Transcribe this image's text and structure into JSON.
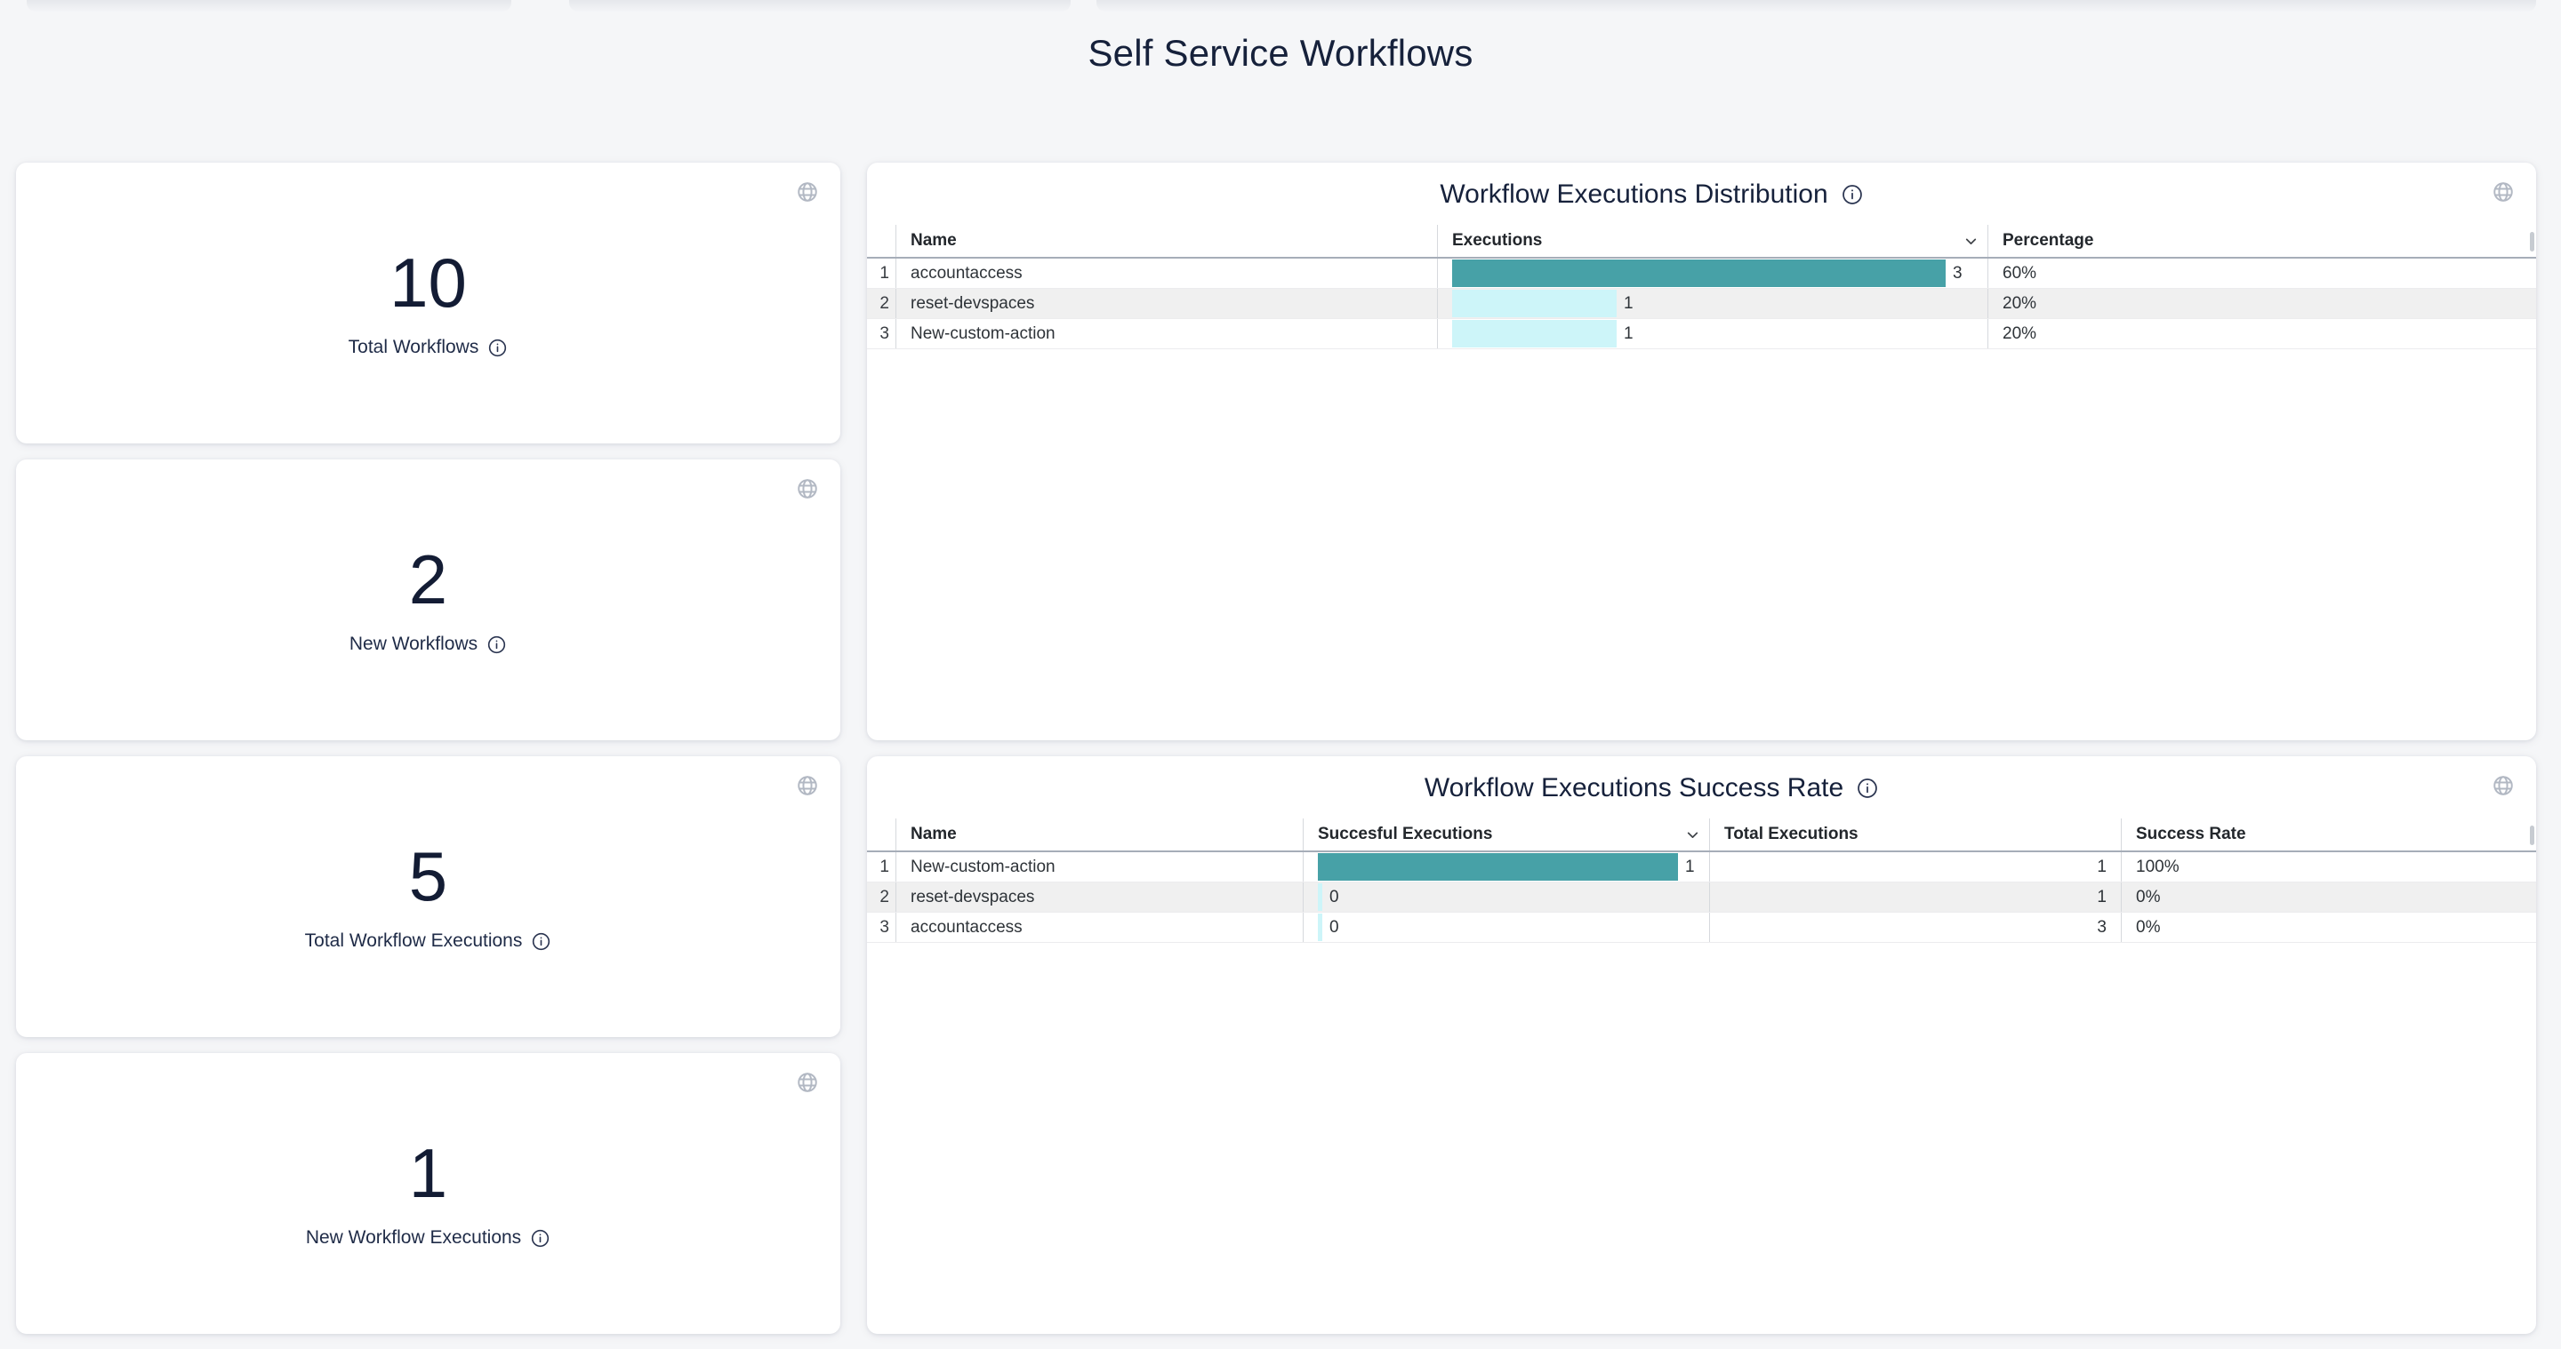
{
  "page_title": "Self Service Workflows",
  "colors": {
    "page_background": "#f5f6f8",
    "card_background": "#ffffff",
    "heading_text": "#16213b",
    "bar_primary": "#47a1a7",
    "bar_secondary": "#cdf5f9",
    "alt_row_background": "#f0f0f0",
    "icon_gray": "#b2b8c3"
  },
  "stat_cards": [
    {
      "value": "10",
      "label": "Total Workflows"
    },
    {
      "value": "2",
      "label": "New Workflows"
    },
    {
      "value": "5",
      "label": "Total Workflow Executions"
    },
    {
      "value": "1",
      "label": "New Workflow Executions"
    }
  ],
  "tables": [
    {
      "title": "Workflow Executions Distribution",
      "columns": [
        {
          "label": "Name"
        },
        {
          "label": "Executions",
          "sortable": true
        },
        {
          "label": "Percentage"
        }
      ],
      "rows": [
        {
          "num": "1",
          "name": "accountaccess",
          "value": "3",
          "percentage": "60%"
        },
        {
          "num": "2",
          "name": "reset-devspaces",
          "value": "1",
          "percentage": "20%"
        },
        {
          "num": "3",
          "name": "New-custom-action",
          "value": "1",
          "percentage": "20%"
        }
      ]
    },
    {
      "title": "Workflow Executions Success Rate",
      "columns": [
        {
          "label": "Name"
        },
        {
          "label": "Succesful Executions",
          "sortable": true
        },
        {
          "label": "Total Executions"
        },
        {
          "label": "Success Rate"
        }
      ],
      "rows": [
        {
          "num": "1",
          "name": "New-custom-action",
          "value": "1",
          "total": "1",
          "rate": "100%"
        },
        {
          "num": "2",
          "name": "reset-devspaces",
          "value": "0",
          "total": "1",
          "rate": "0%"
        },
        {
          "num": "3",
          "name": "accountaccess",
          "value": "0",
          "total": "3",
          "rate": "0%"
        }
      ]
    }
  ],
  "chart_data": [
    {
      "type": "bar",
      "title": "Workflow Executions Distribution",
      "categories": [
        "accountaccess",
        "reset-devspaces",
        "New-custom-action"
      ],
      "values": [
        3,
        1,
        1
      ],
      "percentages": [
        "60%",
        "20%",
        "20%"
      ],
      "orientation": "horizontal"
    },
    {
      "type": "bar",
      "title": "Workflow Executions Success Rate",
      "categories": [
        "New-custom-action",
        "reset-devspaces",
        "accountaccess"
      ],
      "values": [
        1,
        0,
        0
      ],
      "totals": [
        1,
        1,
        3
      ],
      "rates": [
        "100%",
        "0%",
        "0%"
      ],
      "orientation": "horizontal"
    }
  ]
}
